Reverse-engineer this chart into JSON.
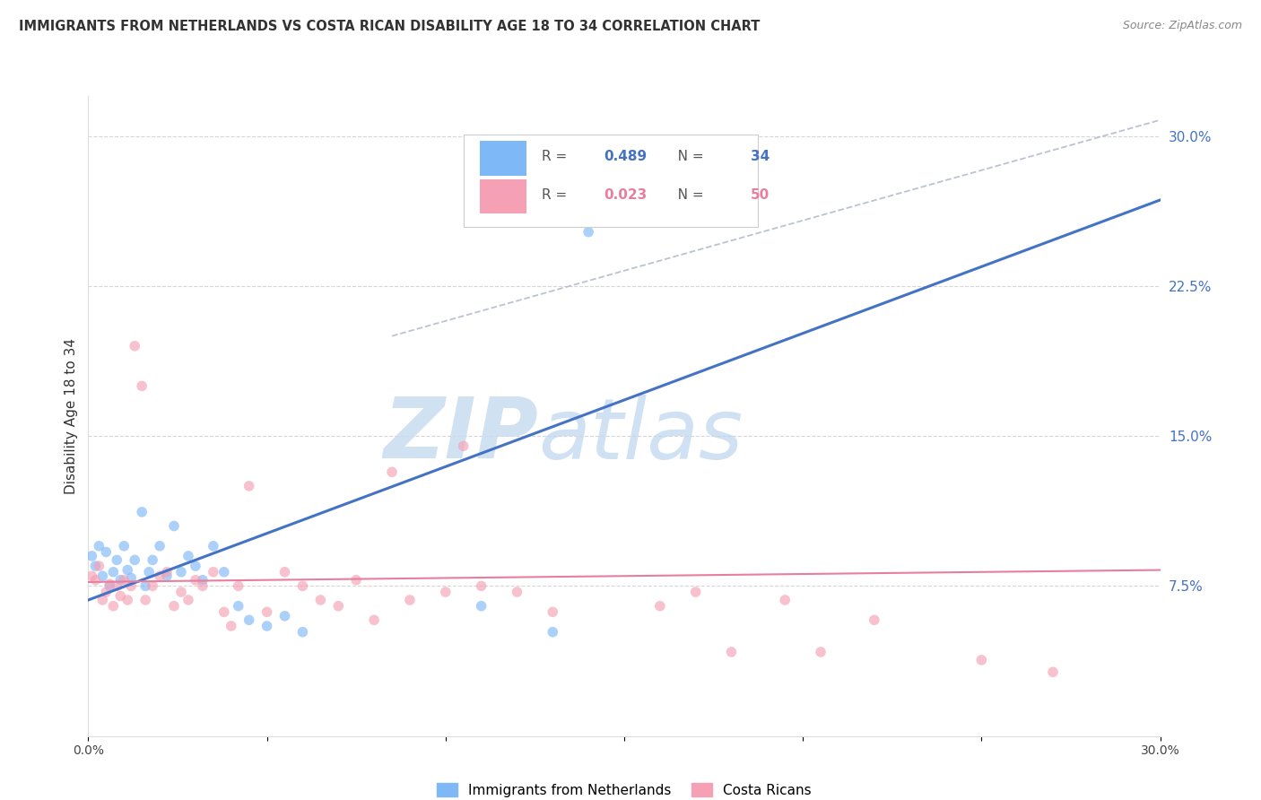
{
  "title": "IMMIGRANTS FROM NETHERLANDS VS COSTA RICAN DISABILITY AGE 18 TO 34 CORRELATION CHART",
  "source": "Source: ZipAtlas.com",
  "ylabel": "Disability Age 18 to 34",
  "xlim": [
    0.0,
    0.3
  ],
  "ylim": [
    0.0,
    0.32
  ],
  "yticks": [
    0.075,
    0.15,
    0.225,
    0.3
  ],
  "ytick_labels": [
    "7.5%",
    "15.0%",
    "22.5%",
    "30.0%"
  ],
  "xticks": [
    0.0,
    0.05,
    0.1,
    0.15,
    0.2,
    0.25,
    0.3
  ],
  "xtick_labels": [
    "0.0%",
    "",
    "",
    "",
    "",
    "",
    "30.0%"
  ],
  "blue_scatter_x": [
    0.001,
    0.002,
    0.003,
    0.004,
    0.005,
    0.006,
    0.007,
    0.008,
    0.009,
    0.01,
    0.011,
    0.012,
    0.013,
    0.015,
    0.016,
    0.017,
    0.018,
    0.02,
    0.022,
    0.024,
    0.026,
    0.028,
    0.03,
    0.032,
    0.035,
    0.038,
    0.042,
    0.045,
    0.05,
    0.055,
    0.06,
    0.11,
    0.13,
    0.14
  ],
  "blue_scatter_y": [
    0.09,
    0.085,
    0.095,
    0.08,
    0.092,
    0.075,
    0.082,
    0.088,
    0.078,
    0.095,
    0.083,
    0.079,
    0.088,
    0.112,
    0.075,
    0.082,
    0.088,
    0.095,
    0.08,
    0.105,
    0.082,
    0.09,
    0.085,
    0.078,
    0.095,
    0.082,
    0.065,
    0.058,
    0.055,
    0.06,
    0.052,
    0.065,
    0.052,
    0.252
  ],
  "pink_scatter_x": [
    0.001,
    0.002,
    0.003,
    0.004,
    0.005,
    0.006,
    0.007,
    0.008,
    0.009,
    0.01,
    0.011,
    0.012,
    0.013,
    0.015,
    0.016,
    0.018,
    0.02,
    0.022,
    0.024,
    0.026,
    0.028,
    0.03,
    0.032,
    0.035,
    0.038,
    0.04,
    0.042,
    0.045,
    0.05,
    0.055,
    0.06,
    0.065,
    0.07,
    0.075,
    0.08,
    0.085,
    0.09,
    0.1,
    0.105,
    0.11,
    0.12,
    0.13,
    0.16,
    0.17,
    0.18,
    0.195,
    0.205,
    0.22,
    0.25,
    0.27
  ],
  "pink_scatter_y": [
    0.08,
    0.078,
    0.085,
    0.068,
    0.072,
    0.076,
    0.065,
    0.075,
    0.07,
    0.078,
    0.068,
    0.075,
    0.195,
    0.175,
    0.068,
    0.075,
    0.08,
    0.082,
    0.065,
    0.072,
    0.068,
    0.078,
    0.075,
    0.082,
    0.062,
    0.055,
    0.075,
    0.125,
    0.062,
    0.082,
    0.075,
    0.068,
    0.065,
    0.078,
    0.058,
    0.132,
    0.068,
    0.072,
    0.145,
    0.075,
    0.072,
    0.062,
    0.065,
    0.072,
    0.042,
    0.068,
    0.042,
    0.058,
    0.038,
    0.032
  ],
  "blue_line_x": [
    0.0,
    0.3
  ],
  "blue_line_y": [
    0.068,
    0.268
  ],
  "pink_line_x": [
    0.0,
    0.3
  ],
  "pink_line_y": [
    0.077,
    0.083
  ],
  "diag_line_x": [
    0.085,
    0.3
  ],
  "diag_line_y": [
    0.2,
    0.308
  ],
  "blue_color": "#7eb8f7",
  "pink_color": "#f5a0b5",
  "blue_line_color": "#4472c4",
  "pink_line_color": "#e87e9e",
  "diag_line_color": "#b0b8c8",
  "bg_color": "#ffffff",
  "grid_color": "#cccccc",
  "watermark_color": "#dceaf7",
  "watermark_text": "ZIPatlas",
  "title_color": "#333333",
  "right_axis_color": "#4472c4",
  "scatter_alpha": 0.65,
  "scatter_size": 70,
  "blue_R": "0.489",
  "blue_N": "34",
  "pink_R": "0.023",
  "pink_N": "50"
}
